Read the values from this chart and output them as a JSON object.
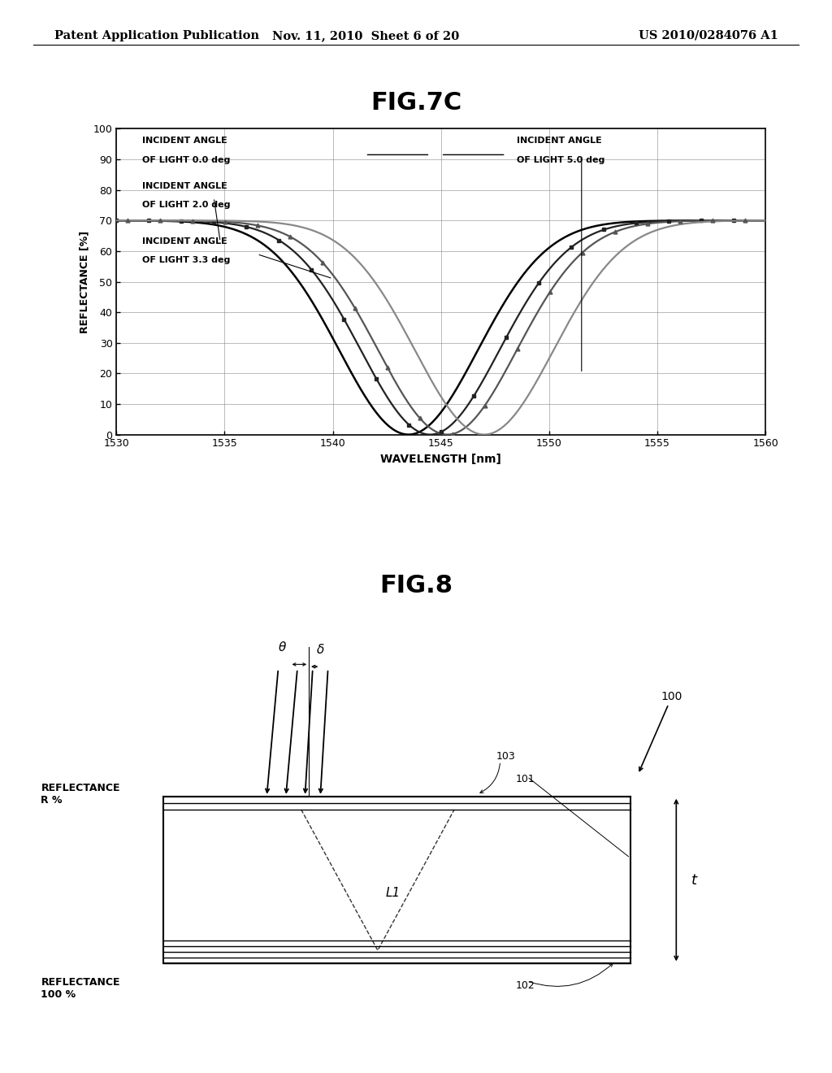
{
  "header_left": "Patent Application Publication",
  "header_mid": "Nov. 11, 2010  Sheet 6 of 20",
  "header_right": "US 2010/0284076 A1",
  "fig1_title": "FIG.7C",
  "fig2_title": "FIG.8",
  "xlabel": "WAVELENGTH [nm]",
  "ylabel": "REFLECTANCE [%]",
  "xmin": 1530,
  "xmax": 1560,
  "ymin": 0,
  "ymax": 100,
  "xticks": [
    1530,
    1535,
    1540,
    1545,
    1550,
    1555,
    1560
  ],
  "yticks": [
    0,
    10,
    20,
    30,
    40,
    50,
    60,
    70,
    80,
    90,
    100
  ],
  "centers": [
    1543.5,
    1544.5,
    1545.3,
    1547.0
  ],
  "sigmas": [
    3.2,
    3.2,
    3.2,
    3.2
  ],
  "curve_colors": [
    "#000000",
    "#222222",
    "#555555",
    "#888888"
  ],
  "curve_lws": [
    1.8,
    1.6,
    1.6,
    1.6
  ],
  "bg_color": "#ffffff"
}
